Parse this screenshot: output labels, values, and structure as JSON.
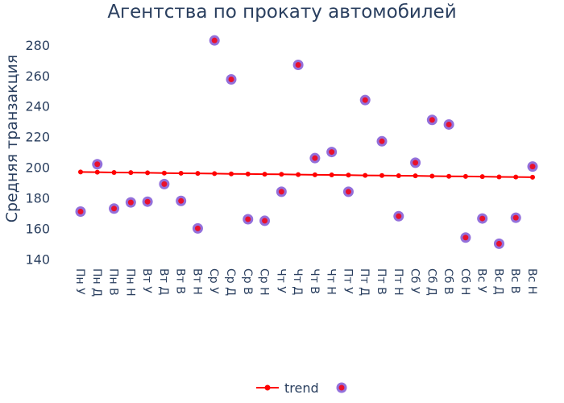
{
  "chart_data": {
    "type": "scatter",
    "title": "Агентства по прокату автомобилей",
    "xlabel": "",
    "ylabel": "Средняя транзакция",
    "ylim": [
      137,
      291
    ],
    "yticks": [
      140,
      160,
      180,
      200,
      220,
      240,
      260,
      280
    ],
    "categories": [
      "Пн У",
      "Пн Д",
      "Пн В",
      "Пн Н",
      "Вт У",
      "Вт Д",
      "Вт В",
      "Вт Н",
      "Ср У",
      "Ср Д",
      "Ср В",
      "Ср Н",
      "Чт У",
      "Чт Д",
      "Чт В",
      "Чт Н",
      "Пт У",
      "Пт Д",
      "Пт В",
      "Пт Н",
      "Сб У",
      "Сб Д",
      "Сб В",
      "Сб Н",
      "Вс У",
      "Вс Д",
      "Вс В",
      "Вс Н"
    ],
    "series": [
      {
        "name": "",
        "mode": "markers",
        "values": [
          171,
          202,
          173,
          177,
          177.5,
          189,
          178,
          160,
          283,
          257.5,
          166,
          165,
          184,
          267,
          206,
          210,
          184,
          244,
          217,
          168,
          203,
          231,
          228,
          154,
          166.5,
          150,
          167,
          200.5
        ]
      },
      {
        "name": "trend",
        "mode": "lines+markers",
        "values": [
          196.9,
          196.8,
          196.6,
          196.5,
          196.4,
          196.2,
          196.1,
          196.0,
          195.9,
          195.7,
          195.6,
          195.5,
          195.4,
          195.2,
          195.1,
          195.0,
          194.9,
          194.7,
          194.6,
          194.5,
          194.4,
          194.2,
          194.1,
          194.0,
          193.9,
          193.7,
          193.6,
          193.5
        ]
      }
    ],
    "legend": {
      "position": "bottom",
      "items": [
        "trend",
        ""
      ]
    },
    "colors": {
      "scatter_outer": "#9370db",
      "scatter_inner": "#e8112d",
      "trend": "#ff0000",
      "text": "#2a3f5f"
    }
  }
}
